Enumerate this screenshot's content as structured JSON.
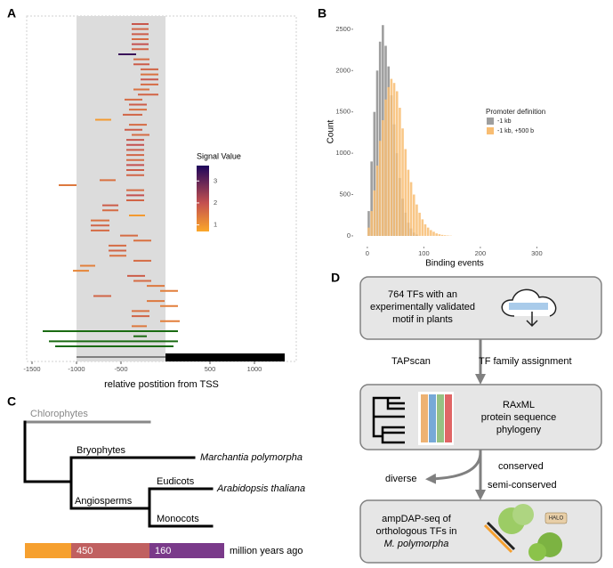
{
  "panels": [
    "A",
    "B",
    "C",
    "D"
  ],
  "chart_data": [
    {
      "type": "segment",
      "xlabel": "relative postition from TSS",
      "xlim": [
        -1560,
        1470
      ],
      "xticks": [
        -1500,
        -1000,
        -500,
        500,
        1000
      ],
      "shade": [
        -1000,
        0
      ],
      "gene_line": [
        -1000,
        0
      ],
      "gene_bar": [
        0,
        1340
      ],
      "starts": [
        -380,
        -380,
        -380,
        -380,
        -380,
        -380,
        -530,
        -360,
        -360,
        -280,
        -280,
        -280,
        -280,
        -360,
        -310,
        -460,
        -410,
        -410,
        -480,
        -790,
        -410,
        -460,
        -380,
        -440,
        -440,
        -440,
        -440,
        -440,
        -440,
        -440,
        -440,
        -740,
        -1200,
        -440,
        -440,
        -440,
        -710,
        -710,
        -410,
        -840,
        -840,
        -840,
        -510,
        -360,
        -640,
        -640,
        -630,
        -360,
        -960,
        -1040,
        -430,
        -360,
        -210,
        -60,
        -810,
        -210,
        -60,
        -380,
        -380,
        -60,
        -380,
        -1380,
        -360,
        -1310,
        -1240
      ],
      "ends": [
        -190,
        -190,
        -190,
        -190,
        -190,
        -190,
        -330,
        -180,
        -180,
        -80,
        -80,
        -80,
        -80,
        -180,
        -80,
        -260,
        -210,
        -210,
        -260,
        -610,
        -210,
        -260,
        -180,
        -240,
        -240,
        -240,
        -240,
        -240,
        -240,
        -240,
        -240,
        -560,
        -1000,
        -240,
        -240,
        -240,
        -530,
        -530,
        -230,
        -630,
        -630,
        -630,
        -310,
        -160,
        -440,
        -440,
        -440,
        -160,
        -790,
        -860,
        -230,
        -160,
        -10,
        140,
        -610,
        -10,
        140,
        -180,
        -180,
        160,
        -210,
        140,
        -210,
        140,
        90
      ],
      "signal": [
        1.9,
        1.7,
        1.8,
        1.6,
        2.0,
        1.7,
        3.4,
        1.6,
        1.8,
        1.7,
        1.5,
        1.9,
        1.6,
        1.5,
        1.7,
        1.6,
        1.8,
        1.5,
        1.7,
        0.9,
        1.6,
        1.8,
        1.6,
        1.9,
        2.0,
        1.8,
        1.7,
        1.6,
        2.0,
        1.8,
        1.7,
        1.5,
        1.4,
        1.6,
        2.0,
        1.7,
        1.8,
        1.6,
        0.9,
        1.5,
        1.7,
        1.6,
        1.6,
        1.5,
        1.6,
        1.7,
        1.5,
        1.6,
        1.3,
        1.2,
        1.8,
        1.6,
        1.4,
        1.3,
        1.7,
        1.4,
        1.3,
        1.5,
        1.7,
        1.3,
        1.4,
        null,
        null,
        null,
        null
      ],
      "no_signal_color": "#1a6b12",
      "legend": {
        "title": "Signal Value",
        "lim": [
          0.7,
          3.7
        ],
        "ticks": [
          3,
          2,
          1
        ]
      },
      "colorscale": [
        {
          "value": 0.7,
          "color": "#fba72a"
        },
        {
          "value": 2,
          "color": "#c4504f"
        },
        {
          "value": 3.7,
          "color": "#1d065c"
        }
      ]
    },
    {
      "type": "histogram",
      "xlabel": "Binding events",
      "ylabel": "Count",
      "xlim": [
        -25,
        334
      ],
      "xticks": [
        0,
        100,
        200,
        300
      ],
      "ylim": [
        -130,
        2660
      ],
      "yticks": [
        0,
        500,
        1000,
        1500,
        2000,
        2500
      ],
      "bins": [
        0,
        5,
        10,
        15,
        20,
        25,
        30,
        35,
        40,
        45,
        50,
        55,
        60,
        65,
        70,
        75,
        80,
        85,
        90,
        95,
        100,
        105,
        110,
        115,
        120,
        125,
        130,
        135,
        140,
        145,
        150
      ],
      "legend_title": "Promoter definition",
      "series": [
        {
          "name": "-1 kb",
          "color": "#9e9e9e",
          "values": [
            300,
            900,
            1500,
            2000,
            2350,
            2550,
            2300,
            2050,
            1700,
            1350,
            1000,
            700,
            450,
            280,
            160,
            90,
            40,
            15,
            0,
            0,
            0,
            0,
            0,
            0,
            0,
            0,
            0,
            0,
            0,
            0
          ]
        },
        {
          "name": "-1 kb, +500 b",
          "color": "#f8bd72",
          "values": [
            100,
            300,
            550,
            850,
            1150,
            1400,
            1650,
            1800,
            1900,
            1850,
            1750,
            1550,
            1300,
            1050,
            800,
            650,
            500,
            380,
            280,
            200,
            140,
            100,
            70,
            50,
            30,
            20,
            12,
            8,
            5,
            3
          ]
        }
      ]
    }
  ],
  "tree": {
    "outgroup": "Chlorophytes",
    "clades": [
      "Bryophytes",
      "Angiosperms",
      "Eudicots",
      "Monocots"
    ],
    "species": [
      "Marchantia polymorpha",
      "Arabidopsis thaliana"
    ],
    "timescale": {
      "values": [
        450,
        160
      ],
      "unit": "million years ago"
    }
  },
  "flowchart": {
    "box1": [
      "764 TFs with an",
      "experimentally validated",
      "motif in plants"
    ],
    "edge1": [
      "TAPscan",
      "TF family assignment"
    ],
    "box2": [
      "RAxML",
      "protein sequence",
      "phylogeny"
    ],
    "edge2": [
      "conserved",
      "semi-conserved",
      "diverse"
    ],
    "box3": [
      "ampDAP-seq of",
      "orthologous TFs in",
      "M. polymorpha"
    ],
    "tag": "HALO"
  }
}
